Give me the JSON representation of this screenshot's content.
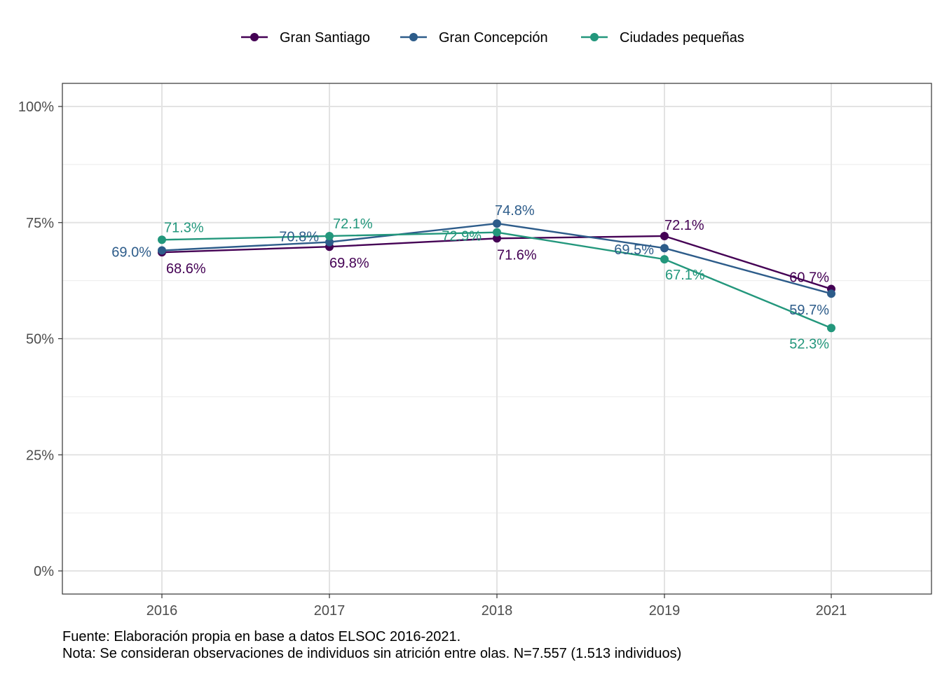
{
  "chart_data": {
    "type": "line",
    "x": [
      "2016",
      "2017",
      "2018",
      "2019",
      "2021"
    ],
    "ylim": [
      0,
      1
    ],
    "yticks": [
      0,
      0.25,
      0.5,
      0.75,
      1
    ],
    "ytick_labels": [
      "0%",
      "25%",
      "50%",
      "75%",
      "100%"
    ],
    "grid": true,
    "legend_position": "top",
    "series": [
      {
        "name": "Gran Santiago",
        "color": "#440154",
        "values": [
          0.686,
          0.698,
          0.716,
          0.721,
          0.607
        ],
        "labels": [
          "68.6%",
          "69.8%",
          "71.6%",
          "72.1%",
          "60.7%"
        ]
      },
      {
        "name": "Gran Concepción",
        "color": "#2D5C8A",
        "values": [
          0.69,
          0.708,
          0.748,
          0.695,
          0.597
        ],
        "labels": [
          "69.0%",
          "70.8%",
          "74.8%",
          "69.5%",
          "59.7%"
        ]
      },
      {
        "name": "Ciudades pequeñas",
        "color": "#23977C",
        "values": [
          0.713,
          0.721,
          0.729,
          0.671,
          0.523
        ],
        "labels": [
          "71.3%",
          "72.1%",
          "72.9%",
          "67.1%",
          "52.3%"
        ]
      }
    ],
    "caption": [
      "Fuente: Elaboración propia en base a datos ELSOC 2016-2021.",
      "Nota: Se consideran observaciones de individuos sin atrición entre olas. N=7.557 (1.513 individuos)"
    ]
  }
}
